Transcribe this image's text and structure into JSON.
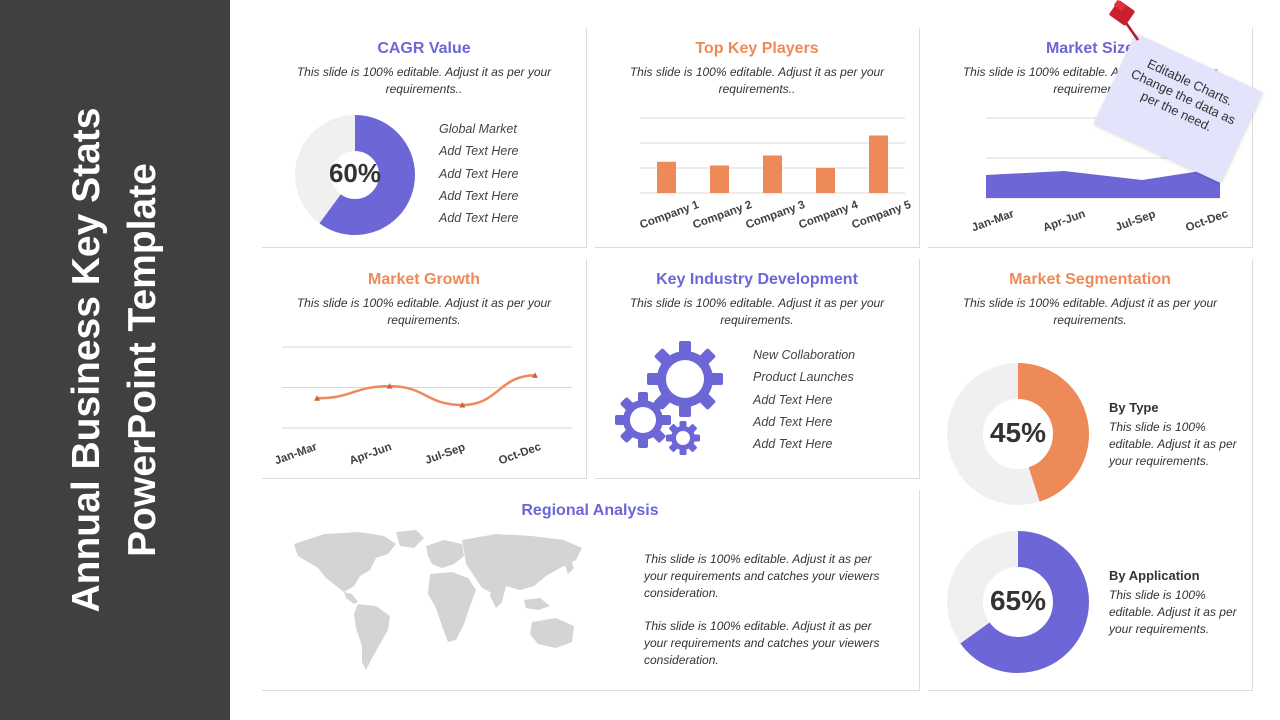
{
  "sidebar": {
    "title_line1": "Annual Business Key Stats",
    "title_line2": "PowerPoint Template"
  },
  "colors": {
    "purple": "#6c66d6",
    "orange": "#ee8a57",
    "track": "#f0f0f0",
    "sidebar": "#404040",
    "map": "#d4d4d4"
  },
  "cagr": {
    "title": "CAGR Value",
    "subtitle": "This slide is 100% editable. Adjust it as per your requirements..",
    "percent_label": "60%",
    "percent": 60,
    "items": [
      "Global Market",
      "Add Text Here",
      "Add Text Here",
      "Add Text Here",
      "Add Text Here"
    ]
  },
  "top_players": {
    "title": "Top Key Players",
    "subtitle": "This slide is 100% editable. Adjust it as per your requirements.."
  },
  "market_size": {
    "title": "Market Size",
    "subtitle": "This slide is 100% editable. Adjust it as per your requirements."
  },
  "market_growth": {
    "title": "Market Growth",
    "subtitle": "This slide is 100% editable. Adjust it as per your requirements."
  },
  "key_industry": {
    "title": "Key Industry Development",
    "subtitle": "This slide is 100% editable. Adjust it as per your requirements.",
    "items": [
      "New Collaboration",
      "Product Launches",
      "Add Text Here",
      "Add Text Here",
      "Add Text Here"
    ],
    "icon": "gears-icon"
  },
  "segmentation": {
    "title": "Market Segmentation",
    "subtitle": "This slide is 100% editable. Adjust it as per your requirements.",
    "by_type": {
      "label": "By Type",
      "text": "This slide is 100% editable. Adjust it as per your requirements.",
      "percent_label": "45%",
      "percent": 45
    },
    "by_application": {
      "label": "By Application",
      "text": "This slide is 100% editable. Adjust it as per your requirements.",
      "percent_label": "65%",
      "percent": 65
    }
  },
  "regional": {
    "title": "Regional Analysis",
    "text1": "This slide is 100% editable. Adjust it as per your requirements and catches your viewers consideration.",
    "text2": "This slide is 100% editable. Adjust it as per your requirements and catches your viewers consideration.",
    "icon": "world-map-icon"
  },
  "note": {
    "text": "Editable Charts. Change the data as per the need.",
    "icon": "pushpin-icon"
  },
  "chart_data": [
    {
      "type": "bar",
      "categories": [
        "Company 1",
        "Company 2",
        "Company 3",
        "Company 4",
        "Company 5"
      ],
      "values": [
        2.5,
        2.2,
        3.0,
        2.0,
        4.6
      ],
      "ylim": [
        0,
        6
      ],
      "grid": true
    },
    {
      "type": "area",
      "categories": [
        "Jan-Mar",
        "Apr-Jun",
        "Jul-Sep",
        "Oct-Dec"
      ],
      "values": [
        2.3,
        2.7,
        1.8,
        3.0
      ],
      "ylim": [
        0,
        8
      ],
      "grid": true
    },
    {
      "type": "line",
      "categories": [
        "Jan-Mar",
        "Apr-Jun",
        "Jul-Sep",
        "Oct-Dec"
      ],
      "values": [
        2.2,
        3.1,
        1.7,
        3.9
      ],
      "ylim": [
        0,
        6
      ],
      "grid": true
    }
  ]
}
